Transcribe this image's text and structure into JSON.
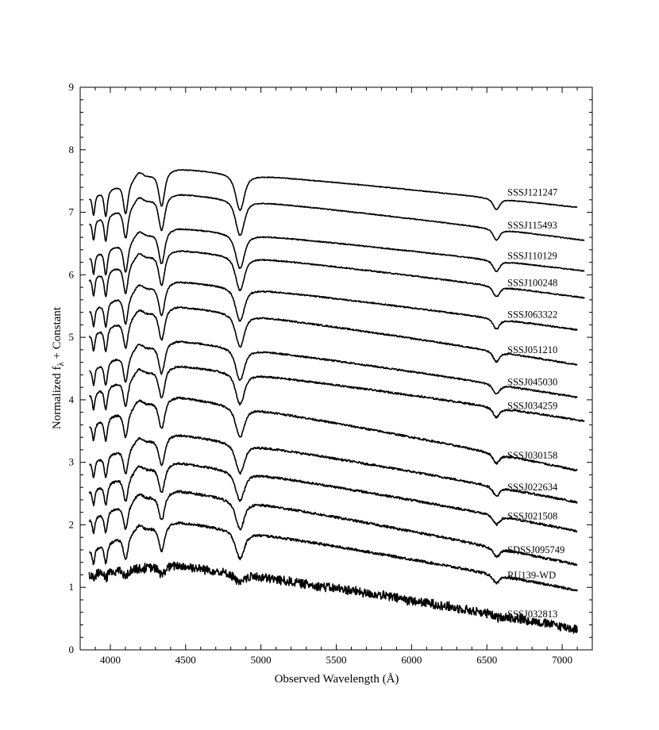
{
  "chart_data": {
    "type": "line",
    "title": "",
    "xlabel": "Observed Wavelength (Å)",
    "ylabel": "Normalized fλ + Constant",
    "xlim": [
      3800,
      7200
    ],
    "ylim": [
      0,
      9
    ],
    "x_ticks": [
      4000,
      4500,
      5000,
      5500,
      6000,
      6500,
      7000
    ],
    "y_ticks": [
      0,
      1,
      2,
      3,
      4,
      5,
      6,
      7,
      8,
      9
    ],
    "grid": false,
    "line_color": "#000000",
    "line_features_angstrom": [
      3835,
      3889,
      3970,
      4102,
      4341,
      4861,
      6563
    ],
    "series": [
      {
        "name": "SSSJ121247",
        "offset": 7.7,
        "x_end": 7100,
        "y_end": 7.08
      },
      {
        "name": "SSSJ115493",
        "offset": 7.3,
        "x_end": 7150,
        "y_end": 6.55
      },
      {
        "name": "SSSJ110129",
        "offset": 6.75,
        "x_end": 7150,
        "y_end": 6.06
      },
      {
        "name": "SSSJ100248",
        "offset": 6.4,
        "x_end": 7150,
        "y_end": 5.63
      },
      {
        "name": "SSSJ063322",
        "offset": 5.9,
        "x_end": 7100,
        "y_end": 5.12
      },
      {
        "name": "SSSJ051210",
        "offset": 5.5,
        "x_end": 7100,
        "y_end": 4.56
      },
      {
        "name": "SSSJ045030",
        "offset": 4.95,
        "x_end": 7100,
        "y_end": 4.04
      },
      {
        "name": "SSSJ034259",
        "offset": 4.55,
        "x_end": 7150,
        "y_end": 3.66
      },
      {
        "name": "SSSJ030158",
        "offset": 4.05,
        "x_end": 7100,
        "y_end": 2.87
      },
      {
        "name": "SSSJ022634",
        "offset": 3.45,
        "x_end": 7100,
        "y_end": 2.36
      },
      {
        "name": "SSSJ021508",
        "offset": 3.0,
        "x_end": 7100,
        "y_end": 1.9
      },
      {
        "name": "SDSSJ095749",
        "offset": 2.55,
        "x_end": 7100,
        "y_end": 1.36
      },
      {
        "name": "RU139-WD",
        "offset": 2.05,
        "x_end": 7100,
        "y_end": 0.95
      },
      {
        "name": "SSSJ032813",
        "offset": 1.35,
        "x_end": 7100,
        "y_end": 0.33
      }
    ]
  }
}
